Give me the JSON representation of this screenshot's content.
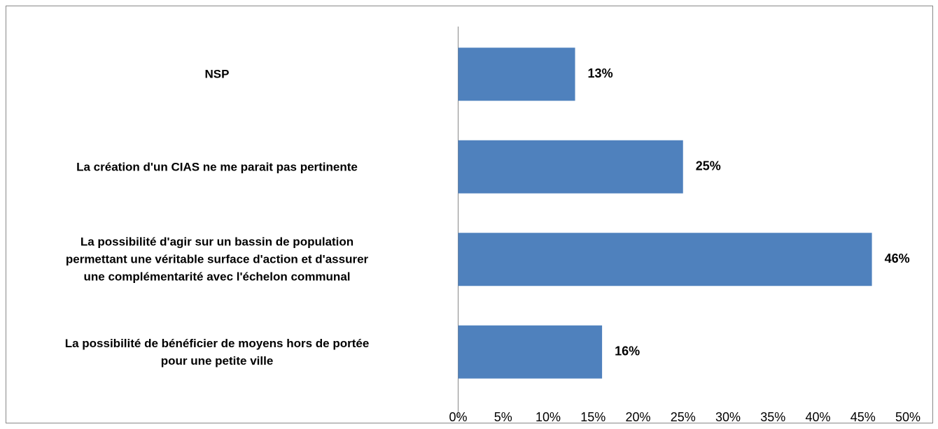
{
  "chart_data": {
    "type": "barh",
    "categories": [
      "NSP",
      "La création d'un CIAS ne me parait pas pertinente",
      "La possibilité d'agir sur un bassin de population\npermettant une véritable surface d'action et d'assurer\nune complémentarité avec l'échelon communal",
      "La possibilité de bénéficier de moyens hors de portée\npour une petite ville"
    ],
    "values": [
      13,
      25,
      46,
      16
    ],
    "value_labels": [
      "13%",
      "25%",
      "46%",
      "16%"
    ],
    "color": "#4f81bd",
    "xlim": [
      0,
      50
    ],
    "xticks": [
      {
        "value": 0,
        "label": "0%"
      },
      {
        "value": 5,
        "label": "5%"
      },
      {
        "value": 10,
        "label": "10%"
      },
      {
        "value": 15,
        "label": "15%"
      },
      {
        "value": 20,
        "label": "20%"
      },
      {
        "value": 25,
        "label": "25%"
      },
      {
        "value": 30,
        "label": "30%"
      },
      {
        "value": 35,
        "label": "35%"
      },
      {
        "value": 40,
        "label": "40%"
      },
      {
        "value": 45,
        "label": "45%"
      },
      {
        "value": 50,
        "label": "50%"
      }
    ],
    "grid": false
  }
}
